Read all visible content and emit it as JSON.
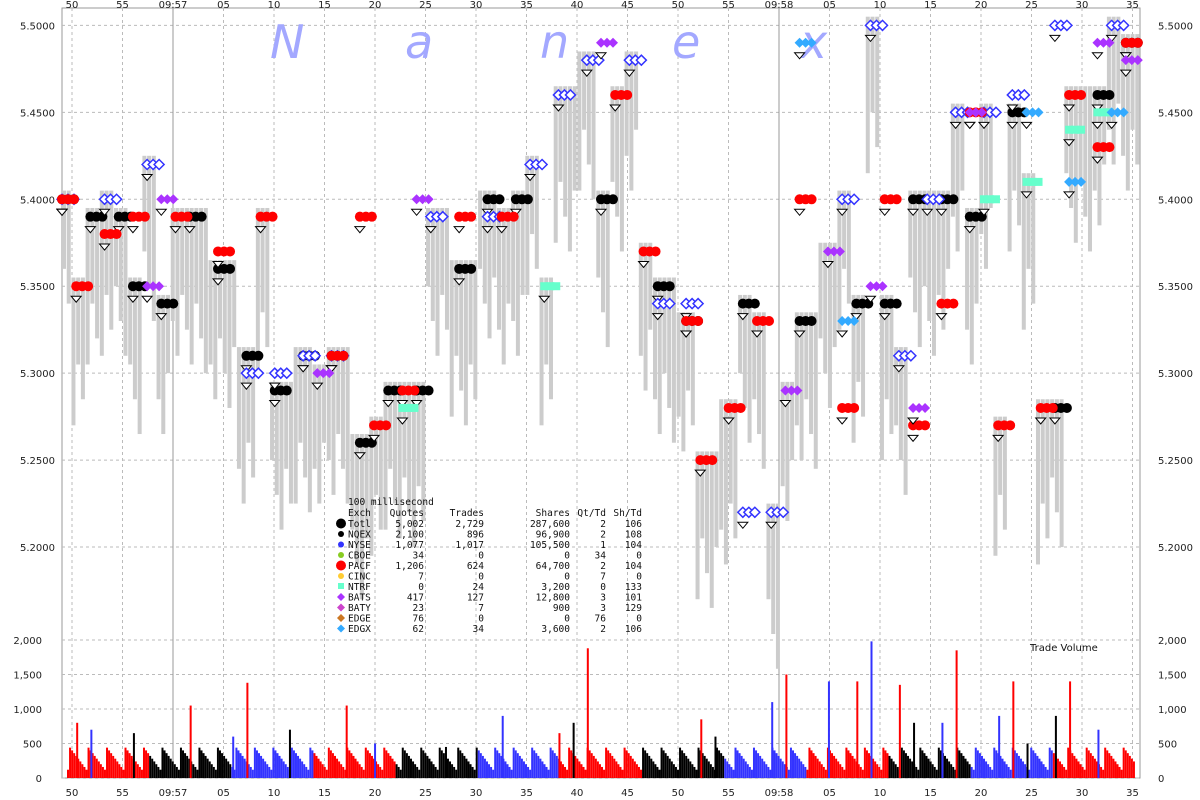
{
  "watermark": "N a n e x",
  "colors": {
    "NQEX": "#000000",
    "NYSE": "#3333ff",
    "CBOE": "#88cc22",
    "PACF": "#ff0000",
    "CINC": "#ffcc33",
    "NTRF": "#66ffcc",
    "BATS": "#aa33ff",
    "BATY": "#cc44cc",
    "EDGE": "#cc7722",
    "EDGX": "#33aaff",
    "nbbo": "#cccccc",
    "grid": "#bbbbbb"
  },
  "time_axis": {
    "labels": [
      "50",
      "55",
      "09:57",
      "05",
      "10",
      "15",
      "20",
      "25",
      "30",
      "35",
      "40",
      "45",
      "50",
      "55",
      "09:58",
      "05",
      "10",
      "15",
      "20",
      "25",
      "30",
      "35"
    ]
  },
  "stats_table": {
    "title": "100 millisecond",
    "headers": [
      "Exch",
      "Quotes",
      "Trades",
      "Shares",
      "Qt/Td",
      "Sh/Td"
    ],
    "rows": [
      {
        "exch": "Totl",
        "quotes": "5,002",
        "trades": "2,729",
        "shares": "287,600",
        "qt_td": "2",
        "sh_td": "106",
        "icon": "black-dot-large-icon",
        "color": "#000000"
      },
      {
        "exch": "NQEX",
        "quotes": "2,100",
        "trades": "896",
        "shares": "96,900",
        "qt_td": "2",
        "sh_td": "108",
        "icon": "black-dot-icon",
        "color": "#000000"
      },
      {
        "exch": "NYSE",
        "quotes": "1,077",
        "trades": "1,017",
        "shares": "105,500",
        "qt_td": "1",
        "sh_td": "104",
        "icon": "blue-dot-icon",
        "color": "#3333ff"
      },
      {
        "exch": "CBOE",
        "quotes": "34",
        "trades": "0",
        "shares": "0",
        "qt_td": "34",
        "sh_td": "0",
        "icon": "green-dot-icon",
        "color": "#88cc22"
      },
      {
        "exch": "PACF",
        "quotes": "1,206",
        "trades": "624",
        "shares": "64,700",
        "qt_td": "2",
        "sh_td": "104",
        "icon": "red-dot-icon",
        "color": "#ff0000"
      },
      {
        "exch": "CINC",
        "quotes": "7",
        "trades": "0",
        "shares": "0",
        "qt_td": "7",
        "sh_td": "0",
        "icon": "orange-dot-icon",
        "color": "#ffcc33"
      },
      {
        "exch": "NTRF",
        "quotes": "0",
        "trades": "24",
        "shares": "3,200",
        "qt_td": "0",
        "sh_td": "133",
        "icon": "cyan-square-icon",
        "color": "#66ffcc"
      },
      {
        "exch": "BATS",
        "quotes": "417",
        "trades": "127",
        "shares": "12,800",
        "qt_td": "3",
        "sh_td": "101",
        "icon": "purple-diamond-icon",
        "color": "#aa33ff"
      },
      {
        "exch": "BATY",
        "quotes": "23",
        "trades": "7",
        "shares": "900",
        "qt_td": "3",
        "sh_td": "129",
        "icon": "magenta-diamond-icon",
        "color": "#cc44cc"
      },
      {
        "exch": "EDGE",
        "quotes": "76",
        "trades": "0",
        "shares": "0",
        "qt_td": "76",
        "sh_td": "0",
        "icon": "brown-diamond-icon",
        "color": "#cc7722"
      },
      {
        "exch": "EDGX",
        "quotes": "62",
        "trades": "34",
        "shares": "3,600",
        "qt_td": "2",
        "sh_td": "106",
        "icon": "skyblue-diamond-icon",
        "color": "#33aaff"
      }
    ]
  },
  "chart_data": [
    {
      "type": "scatter",
      "title": "",
      "xlabel": "",
      "ylabel": "",
      "ylim": [
        5.15,
        5.51
      ],
      "yticks": [
        "5.2000",
        "5.2500",
        "5.3000",
        "5.3500",
        "5.4000",
        "5.4500",
        "5.5000"
      ],
      "grid": true,
      "series": [
        {
          "name": "NQEX",
          "points": [
            [
              0,
              5.4
            ],
            [
              2,
              5.39
            ],
            [
              4,
              5.39
            ],
            [
              5,
              5.35
            ],
            [
              7,
              5.34
            ],
            [
              9,
              5.39
            ],
            [
              11,
              5.36
            ],
            [
              13,
              5.31
            ],
            [
              15,
              5.29
            ],
            [
              17,
              5.31
            ],
            [
              19,
              5.31
            ],
            [
              21,
              5.26
            ],
            [
              23,
              5.29
            ],
            [
              25,
              5.29
            ],
            [
              28,
              5.36
            ],
            [
              30,
              5.4
            ],
            [
              32,
              5.4
            ],
            [
              38,
              5.4
            ],
            [
              42,
              5.35
            ],
            [
              44,
              5.33
            ],
            [
              48,
              5.34
            ],
            [
              52,
              5.33
            ],
            [
              56,
              5.34
            ],
            [
              58,
              5.34
            ],
            [
              60,
              5.4
            ],
            [
              62,
              5.4
            ],
            [
              64,
              5.39
            ],
            [
              67,
              5.45
            ],
            [
              70,
              5.28
            ],
            [
              73,
              5.46
            ],
            [
              75,
              5.49
            ]
          ]
        },
        {
          "name": "NYSE",
          "points": [
            [
              0,
              5.4
            ],
            [
              3,
              5.4
            ],
            [
              6,
              5.42
            ],
            [
              13,
              5.3
            ],
            [
              15,
              5.3
            ],
            [
              17,
              5.31
            ],
            [
              19,
              5.31
            ],
            [
              26,
              5.39
            ],
            [
              30,
              5.39
            ],
            [
              33,
              5.42
            ],
            [
              35,
              5.46
            ],
            [
              37,
              5.48
            ],
            [
              40,
              5.48
            ],
            [
              42,
              5.34
            ],
            [
              44,
              5.34
            ],
            [
              48,
              5.22
            ],
            [
              50,
              5.22
            ],
            [
              55,
              5.4
            ],
            [
              57,
              5.5
            ],
            [
              59,
              5.31
            ],
            [
              61,
              5.4
            ],
            [
              63,
              5.45
            ],
            [
              65,
              5.45
            ],
            [
              67,
              5.46
            ],
            [
              70,
              5.5
            ],
            [
              74,
              5.5
            ]
          ]
        },
        {
          "name": "PACF",
          "points": [
            [
              0,
              5.4
            ],
            [
              1,
              5.35
            ],
            [
              3,
              5.38
            ],
            [
              5,
              5.39
            ],
            [
              8,
              5.39
            ],
            [
              11,
              5.37
            ],
            [
              14,
              5.39
            ],
            [
              19,
              5.31
            ],
            [
              21,
              5.39
            ],
            [
              22,
              5.27
            ],
            [
              24,
              5.29
            ],
            [
              28,
              5.39
            ],
            [
              31,
              5.39
            ],
            [
              39,
              5.46
            ],
            [
              41,
              5.37
            ],
            [
              44,
              5.33
            ],
            [
              45,
              5.25
            ],
            [
              47,
              5.28
            ],
            [
              49,
              5.33
            ],
            [
              52,
              5.4
            ],
            [
              55,
              5.28
            ],
            [
              58,
              5.4
            ],
            [
              60,
              5.27
            ],
            [
              62,
              5.34
            ],
            [
              64,
              5.45
            ],
            [
              66,
              5.27
            ],
            [
              69,
              5.28
            ],
            [
              71,
              5.46
            ],
            [
              73,
              5.43
            ],
            [
              75,
              5.49
            ]
          ]
        },
        {
          "name": "BATS",
          "points": [
            [
              6,
              5.35
            ],
            [
              7,
              5.4
            ],
            [
              18,
              5.3
            ],
            [
              25,
              5.4
            ],
            [
              38,
              5.49
            ],
            [
              51,
              5.29
            ],
            [
              54,
              5.37
            ],
            [
              57,
              5.35
            ],
            [
              60,
              5.28
            ],
            [
              64,
              5.45
            ],
            [
              73,
              5.49
            ],
            [
              75,
              5.48
            ]
          ]
        },
        {
          "name": "NTRF",
          "points": [
            [
              24,
              5.28
            ],
            [
              34,
              5.35
            ],
            [
              65,
              5.4
            ],
            [
              68,
              5.41
            ],
            [
              71,
              5.44
            ],
            [
              73,
              5.45
            ]
          ]
        },
        {
          "name": "EDGX",
          "points": [
            [
              52,
              5.49
            ],
            [
              55,
              5.33
            ],
            [
              68,
              5.45
            ],
            [
              71,
              5.41
            ],
            [
              74,
              5.45
            ]
          ]
        }
      ]
    },
    {
      "type": "bar",
      "title": "Trade Volume",
      "xlabel": "",
      "ylabel": "",
      "ylim": [
        0,
        2000
      ],
      "yticks": [
        "0",
        "500",
        "1,000",
        "1,500",
        "2,000"
      ],
      "grid": true,
      "series": [
        {
          "name": "NQEX",
          "peaks": [
            [
              5,
              650
            ],
            [
              16,
              700
            ],
            [
              27,
              450
            ],
            [
              36,
              800
            ],
            [
              46,
              600
            ],
            [
              60,
              800
            ],
            [
              68,
              500
            ],
            [
              70,
              900
            ]
          ]
        },
        {
          "name": "NYSE",
          "peaks": [
            [
              2,
              700
            ],
            [
              12,
              600
            ],
            [
              22,
              500
            ],
            [
              31,
              900
            ],
            [
              50,
              1100
            ],
            [
              54,
              1400
            ],
            [
              57,
              1980
            ],
            [
              62,
              800
            ],
            [
              66,
              900
            ],
            [
              73,
              700
            ]
          ]
        },
        {
          "name": "PACF",
          "peaks": [
            [
              1,
              800
            ],
            [
              9,
              1050
            ],
            [
              13,
              1380
            ],
            [
              20,
              1050
            ],
            [
              35,
              650
            ],
            [
              37,
              1880
            ],
            [
              45,
              850
            ],
            [
              51,
              1500
            ],
            [
              56,
              1400
            ],
            [
              59,
              1350
            ],
            [
              63,
              1850
            ],
            [
              67,
              1400
            ],
            [
              71,
              1400
            ]
          ]
        }
      ]
    }
  ]
}
